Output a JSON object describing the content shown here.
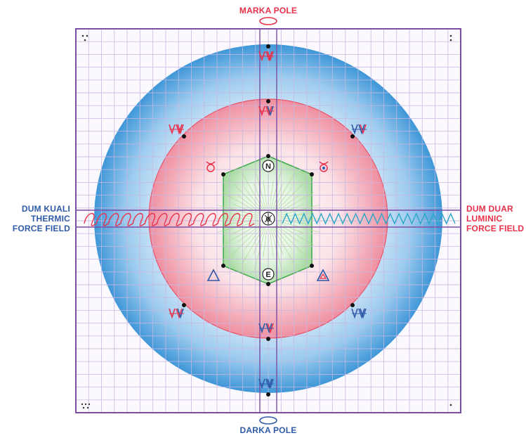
{
  "labels": {
    "top": "MARKA POLE",
    "bottom": "DARKA POLE",
    "left": [
      "DUM KUALI",
      "THERMIC",
      "FORCE FIELD"
    ],
    "right": [
      "DUM DUAR",
      "LUMINIC",
      "FORCE FIELD"
    ]
  },
  "center_letters": {
    "north": "N",
    "east": "E",
    "center": "O"
  },
  "colors": {
    "frame": "#7b4fa3",
    "grid": "#c7b8e0",
    "outer_circle": "#3a93d6",
    "middle_circle": "#e8556d",
    "hexagon": "#3ea84b",
    "thermic_wave": "#e8314a",
    "luminic_wave": "#2aa7c7",
    "marker": "#111111"
  },
  "icons": [
    "double-v-glyph-icon",
    "taurus-symbol-icon",
    "triangle-symbol-icon",
    "sun-rays-icon",
    "pole-ring-icon"
  ]
}
